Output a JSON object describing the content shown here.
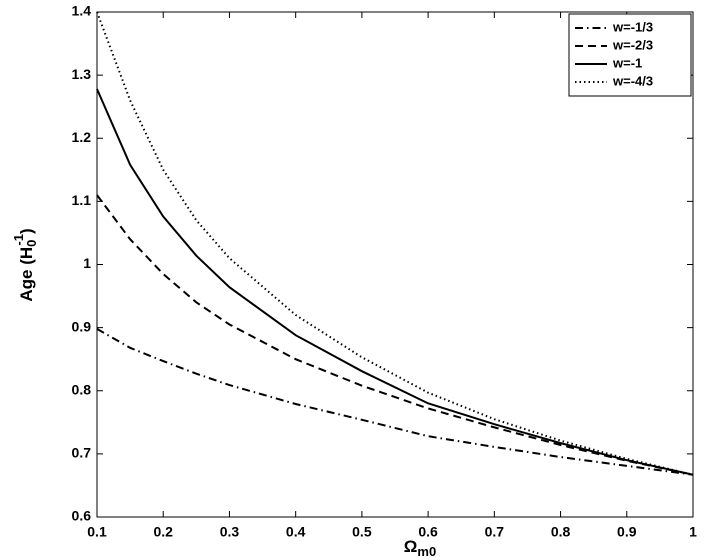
{
  "chart_data": {
    "type": "line",
    "xlabel": {
      "text": "Ω",
      "sub": "m0"
    },
    "ylabel": {
      "text": "Age (H",
      "sub": "0",
      "sup": "-1",
      "close": ")"
    },
    "x": [
      0.1,
      0.15,
      0.2,
      0.25,
      0.3,
      0.4,
      0.5,
      0.6,
      0.7,
      0.8,
      0.9,
      1.0
    ],
    "series": [
      {
        "name": "w=-1/3",
        "color": "#000000",
        "linestyle": "dashdot",
        "values": [
          0.898,
          0.868,
          0.847,
          0.827,
          0.809,
          0.779,
          0.754,
          0.728,
          0.711,
          0.695,
          0.681,
          0.667
        ]
      },
      {
        "name": "w=-2/3",
        "color": "#000000",
        "linestyle": "dashed",
        "values": [
          1.11,
          1.04,
          0.985,
          0.94,
          0.905,
          0.85,
          0.808,
          0.772,
          0.742,
          0.714,
          0.689,
          0.667
        ]
      },
      {
        "name": "w=-1",
        "color": "#000000",
        "linestyle": "solid",
        "values": [
          1.278,
          1.158,
          1.076,
          1.014,
          0.964,
          0.888,
          0.831,
          0.78,
          0.747,
          0.717,
          0.69,
          0.667
        ]
      },
      {
        "name": "w=-4/3",
        "color": "#000000",
        "linestyle": "dotted",
        "values": [
          1.4,
          1.26,
          1.15,
          1.07,
          1.01,
          0.92,
          0.853,
          0.797,
          0.755,
          0.721,
          0.692,
          0.667
        ]
      }
    ],
    "xlim": [
      0.1,
      1
    ],
    "xticks": [
      0.1,
      0.2,
      0.3,
      0.4,
      0.5,
      0.6,
      0.7,
      0.8,
      0.9,
      1
    ],
    "ylim": [
      0.6,
      1.4
    ],
    "yticks": [
      0.6,
      0.7,
      0.8,
      0.9,
      1,
      1.1,
      1.2,
      1.3,
      1.4
    ],
    "grid": false,
    "legend": "upper right"
  }
}
